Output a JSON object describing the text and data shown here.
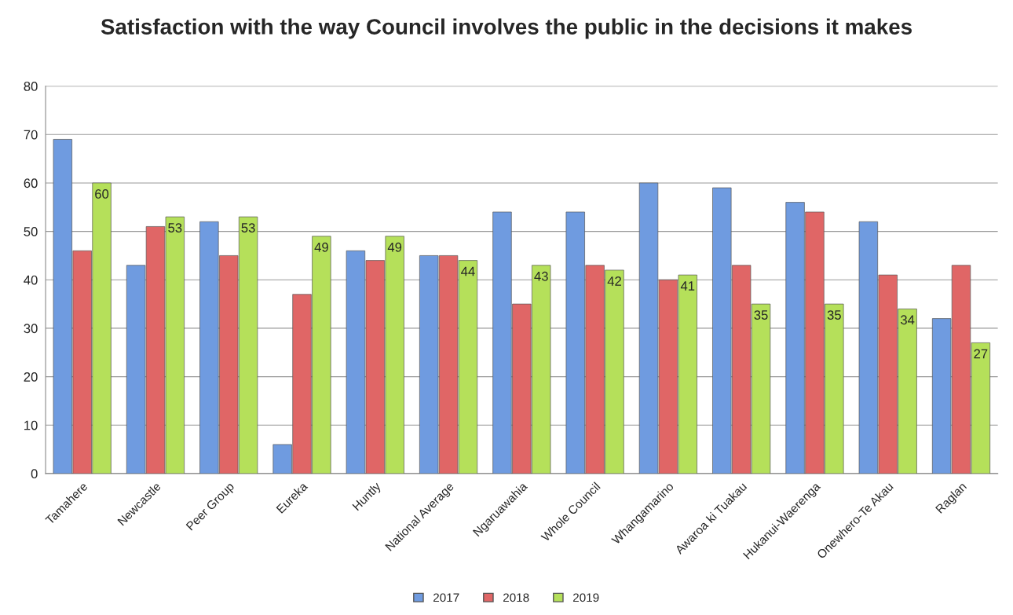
{
  "chart_data": {
    "type": "bar",
    "title": "Satisfaction with the way Council involves the public in the decisions it makes",
    "categories": [
      "Tamahere",
      "Newcastle",
      "Peer Group",
      "Eureka",
      "Huntly",
      "National Average",
      "Ngaruawahia",
      "Whole Council",
      "Whangamarino",
      "Awaroa ki Tuakau",
      "Hukanui-Waerenga",
      "Onewhero-Te Akau",
      "Raglan"
    ],
    "series": [
      {
        "name": "2017",
        "color": "#6f9be0",
        "values": [
          69,
          43,
          52,
          6,
          46,
          45,
          54,
          54,
          60,
          59,
          56,
          52,
          32
        ]
      },
      {
        "name": "2018",
        "color": "#e06666",
        "values": [
          46,
          51,
          45,
          37,
          44,
          45,
          35,
          43,
          40,
          43,
          54,
          41,
          43
        ]
      },
      {
        "name": "2019",
        "color": "#b5e05a",
        "values": [
          60,
          53,
          53,
          49,
          49,
          44,
          43,
          42,
          41,
          35,
          35,
          34,
          27
        ],
        "value_labels": [
          "60",
          "53",
          "53",
          "49",
          "49",
          "44",
          "43",
          "42",
          "41",
          "35",
          "35",
          "34",
          "27"
        ]
      }
    ],
    "ylim": [
      0,
      80
    ],
    "yticks": [
      0,
      10,
      20,
      30,
      40,
      50,
      60,
      70,
      80
    ],
    "grid": "y",
    "legend": "bottom"
  }
}
